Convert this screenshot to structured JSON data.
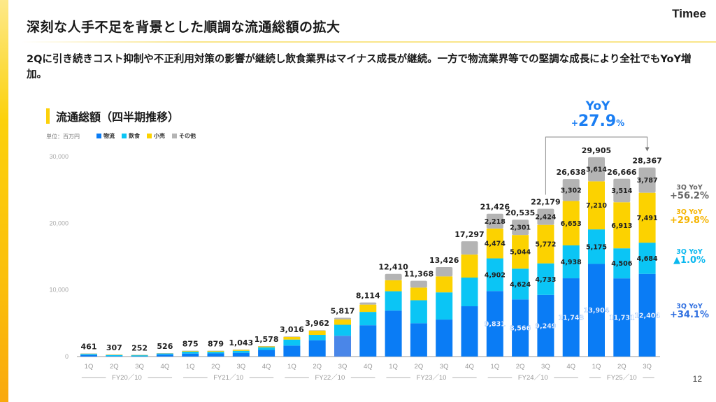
{
  "slide": {
    "title": "深刻な人手不足を背景とした順調な流通総額の拡大",
    "logo": "Timee",
    "lead": "2Qに引き続きコスト抑制や不正利用対策の影響が継続し飲食業界はマイナス成長が継続。一方で物流業界等での堅調な成長により全社でもYoY増加。",
    "section_title": "流通総額（四半期推移）",
    "unit": "単位：百万円",
    "page_number": "12"
  },
  "colors": {
    "logistics": "#0a7cf5",
    "food": "#0bc5f5",
    "retail": "#fcd200",
    "other": "#b4b4b4",
    "accent": "#fcd10a",
    "yoy_blue": "#1a7ef3"
  },
  "yoy_total": {
    "label": "YoY",
    "sign": "+",
    "value": "27.9",
    "unit": "%"
  },
  "side_yoy": [
    {
      "series": "other",
      "label": "3Q YoY",
      "value": "+56.2%",
      "color": "#666666"
    },
    {
      "series": "retail",
      "label": "3Q YoY",
      "value": "+29.8%",
      "color": "#f5b400"
    },
    {
      "series": "food",
      "label": "3Q YoY",
      "value": "▲1.0%",
      "color": "#0bb8ef"
    },
    {
      "series": "logistics",
      "label": "3Q YoY",
      "value": "+34.1%",
      "color": "#2f6fe0"
    }
  ],
  "chart_data": {
    "type": "bar",
    "stacked": true,
    "title": "流通総額（四半期推移）",
    "ylabel": "単位：百万円",
    "ylim": [
      0,
      30000
    ],
    "yticks": [
      0,
      10000,
      20000,
      30000
    ],
    "ytick_labels": [
      "0",
      "10,000",
      "20,000",
      "30,000"
    ],
    "grid": false,
    "legend_position": "top-left",
    "categories": [
      "1Q",
      "2Q",
      "3Q",
      "4Q",
      "1Q",
      "2Q",
      "3Q",
      "4Q",
      "1Q",
      "2Q",
      "3Q",
      "4Q",
      "1Q",
      "2Q",
      "3Q",
      "4Q",
      "1Q",
      "2Q",
      "3Q",
      "4Q",
      "1Q",
      "2Q",
      "3Q"
    ],
    "fiscal_years": [
      {
        "label": "FY20／10",
        "span": 4
      },
      {
        "label": "FY21／10",
        "span": 4
      },
      {
        "label": "FY22／10",
        "span": 4
      },
      {
        "label": "FY23／10",
        "span": 4
      },
      {
        "label": "FY24／10",
        "span": 4
      },
      {
        "label": "FY25／10",
        "span": 3
      }
    ],
    "totals": [
      461,
      307,
      252,
      526,
      875,
      879,
      1043,
      1578,
      3016,
      3962,
      5817,
      8114,
      12410,
      11368,
      13426,
      17297,
      21426,
      20535,
      22179,
      26638,
      29905,
      26666,
      28367
    ],
    "total_labels": [
      "461",
      "307",
      "252",
      "526",
      "875",
      "879",
      "1,043",
      "1,578",
      "3,016",
      "3,962",
      "5,817",
      "8,114",
      "12,410",
      "11,368",
      "13,426",
      "17,297",
      "21,426",
      "20,535",
      "22,179",
      "26,638",
      "29,905",
      "26,666",
      "28,367"
    ],
    "series": [
      {
        "key": "logistics",
        "name": "物流",
        "values": [
          250,
          60,
          40,
          300,
          450,
          470,
          560,
          1000,
          1650,
          2450,
          3120,
          4700,
          6900,
          5000,
          5550,
          7550,
          9831,
          8566,
          9249,
          11743,
          13904,
          11731,
          12404
        ],
        "labels": [
          null,
          null,
          null,
          null,
          null,
          null,
          null,
          null,
          null,
          null,
          null,
          null,
          null,
          null,
          null,
          null,
          "9,831",
          "8,566",
          "9,249",
          "11,743",
          "13,904",
          "11,731",
          "12,404"
        ]
      },
      {
        "key": "food",
        "name": "飲食",
        "values": [
          150,
          160,
          180,
          160,
          290,
          250,
          300,
          400,
          900,
          800,
          1650,
          2000,
          2900,
          3450,
          4080,
          4300,
          4902,
          4624,
          4733,
          4938,
          5175,
          4506,
          4684
        ],
        "labels": [
          null,
          null,
          null,
          null,
          null,
          null,
          null,
          null,
          null,
          null,
          null,
          null,
          null,
          null,
          null,
          null,
          "4,902",
          "4,624",
          "4,733",
          "4,938",
          "5,175",
          "4,506",
          "4,684"
        ]
      },
      {
        "key": "retail",
        "name": "小売",
        "values": [
          50,
          80,
          25,
          50,
          100,
          130,
          140,
          150,
          400,
          650,
          800,
          1100,
          1650,
          1900,
          2400,
          3450,
          4474,
          5044,
          5772,
          6653,
          7210,
          6913,
          7491
        ],
        "labels": [
          null,
          null,
          null,
          null,
          null,
          null,
          null,
          null,
          null,
          null,
          null,
          null,
          null,
          null,
          null,
          null,
          "4,474",
          "5,044",
          "5,772",
          "6,653",
          "7,210",
          "6,913",
          "7,491"
        ]
      },
      {
        "key": "other",
        "name": "その他",
        "values": [
          11,
          7,
          7,
          16,
          35,
          29,
          43,
          28,
          66,
          62,
          247,
          314,
          960,
          1018,
          1396,
          1997,
          2218,
          2301,
          2424,
          3302,
          3614,
          3514,
          3787
        ],
        "labels": [
          null,
          null,
          null,
          null,
          null,
          null,
          null,
          null,
          null,
          null,
          null,
          null,
          null,
          null,
          null,
          null,
          "2,218",
          "2,301",
          "2,424",
          "3,302",
          "3,614",
          "3,514",
          "3,787"
        ]
      }
    ],
    "annotation": {
      "from_index": 18,
      "to_index": 22,
      "text": "YoY +27.9%"
    }
  }
}
